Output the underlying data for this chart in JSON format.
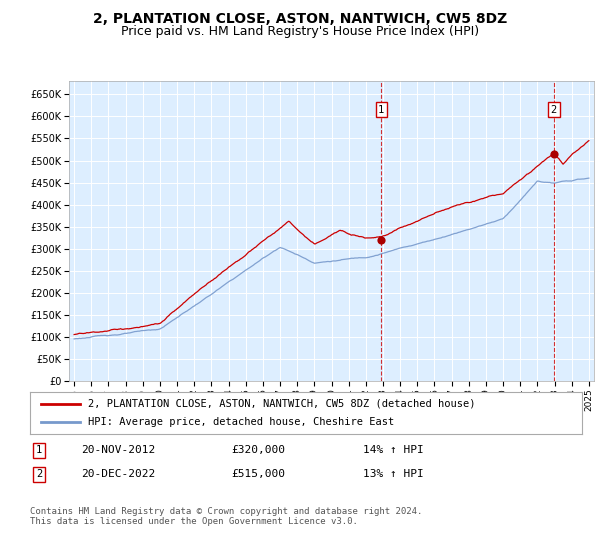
{
  "title": "2, PLANTATION CLOSE, ASTON, NANTWICH, CW5 8DZ",
  "subtitle": "Price paid vs. HM Land Registry's House Price Index (HPI)",
  "title_fontsize": 10,
  "subtitle_fontsize": 9,
  "ylim": [
    0,
    680000
  ],
  "yticks": [
    0,
    50000,
    100000,
    150000,
    200000,
    250000,
    300000,
    350000,
    400000,
    450000,
    500000,
    550000,
    600000,
    650000
  ],
  "ytick_labels": [
    "£0",
    "£50K",
    "£100K",
    "£150K",
    "£200K",
    "£250K",
    "£300K",
    "£350K",
    "£400K",
    "£450K",
    "£500K",
    "£550K",
    "£600K",
    "£650K"
  ],
  "xlim_start": 1994.7,
  "xlim_end": 2025.3,
  "xtick_years": [
    1995,
    1996,
    1997,
    1998,
    1999,
    2000,
    2001,
    2002,
    2003,
    2004,
    2005,
    2006,
    2007,
    2008,
    2009,
    2010,
    2011,
    2012,
    2013,
    2014,
    2015,
    2016,
    2017,
    2018,
    2019,
    2020,
    2021,
    2022,
    2023,
    2024,
    2025
  ],
  "sale1_x": 2012.9,
  "sale1_y": 320000,
  "sale1_label": "1",
  "sale2_x": 2022.96,
  "sale2_y": 515000,
  "sale2_label": "2",
  "sale_dot_color": "#aa0000",
  "vline_color": "#cc0000",
  "hpi_line_color": "#7799cc",
  "price_line_color": "#cc0000",
  "bg_color": "#ddeeff",
  "legend_label_price": "2, PLANTATION CLOSE, ASTON, NANTWICH, CW5 8DZ (detached house)",
  "legend_label_hpi": "HPI: Average price, detached house, Cheshire East",
  "note1_label": "1",
  "note1_date": "20-NOV-2012",
  "note1_price": "£320,000",
  "note1_hpi": "14% ↑ HPI",
  "note2_label": "2",
  "note2_date": "20-DEC-2022",
  "note2_price": "£515,000",
  "note2_hpi": "13% ↑ HPI",
  "footnote": "Contains HM Land Registry data © Crown copyright and database right 2024.\nThis data is licensed under the Open Government Licence v3.0."
}
